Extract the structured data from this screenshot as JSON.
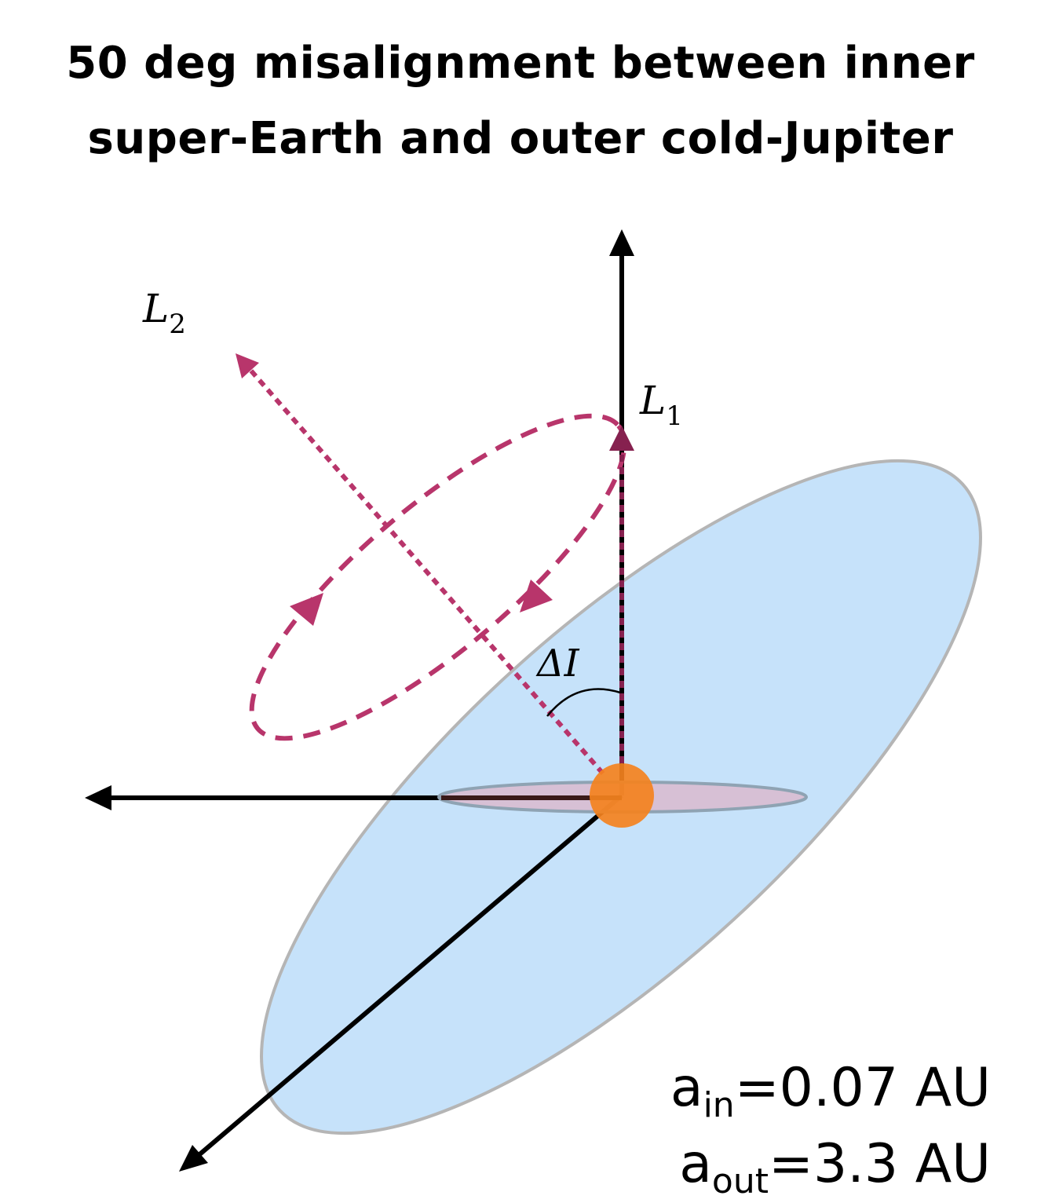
{
  "title": {
    "line1": "50 deg misalignment between inner",
    "line2": "super-Earth and outer cold-Jupiter"
  },
  "labels": {
    "L2": {
      "main": "L",
      "sub": "2"
    },
    "L1": {
      "main": "L",
      "sub": "1"
    },
    "delta_I": "ΔI"
  },
  "params": {
    "a_in": {
      "symbol": "a",
      "sub": "in",
      "value": "=0.07 AU"
    },
    "a_out": {
      "symbol": "a",
      "sub": "out",
      "value": "=3.3 AU"
    }
  },
  "colors": {
    "outer_orbit_fill": "#c6e2fa",
    "outer_orbit_stroke": "#b5b5b5",
    "inner_orbit_fill": "#d4c2cc",
    "star": "#f28a2e",
    "precession": "#b8356b",
    "L1_vector": "#86214f",
    "axes": "#000000"
  }
}
